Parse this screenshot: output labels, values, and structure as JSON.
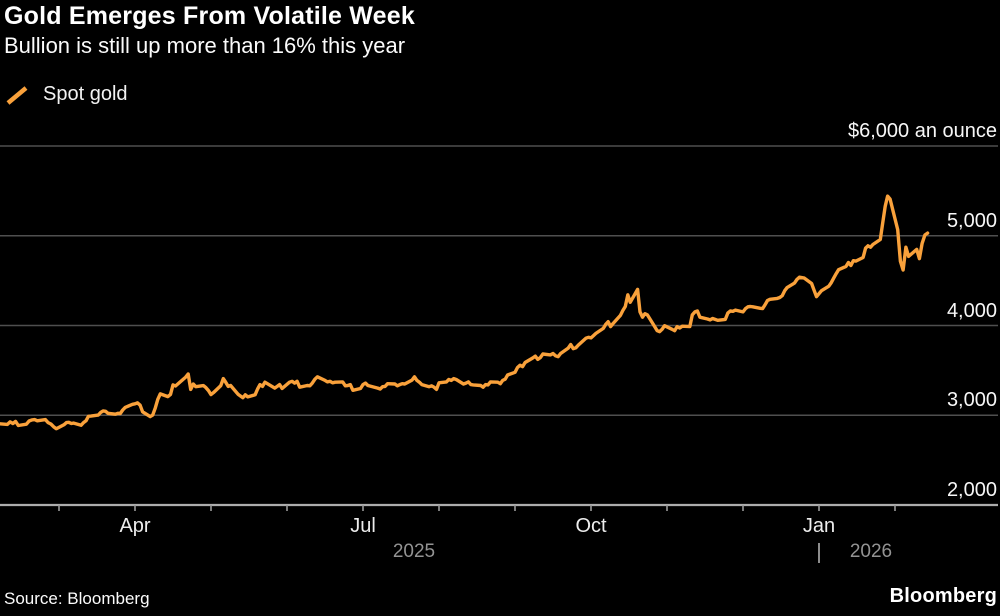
{
  "header": {
    "title": "Gold Emerges From Volatile Week",
    "subtitle": "Bullion is still up more than 16% this year"
  },
  "legend": {
    "marker": "orange-slash",
    "label": "Spot gold"
  },
  "footer": {
    "source": "Source: Bloomberg",
    "logo": "Bloomberg"
  },
  "colors": {
    "background": "#000000",
    "line": "#F9A13B",
    "grid": "#4F4F4F",
    "axis": "#ADADAD",
    "tick": "#9A9A9A",
    "text_primary": "#FFFFFF",
    "text_secondary": "#939393"
  },
  "chart_data": {
    "type": "line",
    "title": "Gold Emerges From Volatile Week",
    "subtitle": "Bullion is still up more than 16% this year",
    "grid": true,
    "legend_position": "top-left",
    "ylim": [
      2000,
      6000
    ],
    "y_axis": {
      "ticks": [
        6000,
        5000,
        4000,
        3000,
        2000
      ],
      "tick_labels": [
        "$6,000 an ounce",
        "5,000",
        "4,000",
        "3,000",
        "2,000"
      ],
      "side": "right"
    },
    "x_axis": {
      "ticks": [
        {
          "month": "2025-03",
          "label": ""
        },
        {
          "month": "2025-04",
          "label": "Apr"
        },
        {
          "month": "2025-05",
          "label": ""
        },
        {
          "month": "2025-06",
          "label": ""
        },
        {
          "month": "2025-07",
          "label": "Jul"
        },
        {
          "month": "2025-08",
          "label": ""
        },
        {
          "month": "2025-09",
          "label": ""
        },
        {
          "month": "2025-10",
          "label": "Oct"
        },
        {
          "month": "2025-11",
          "label": ""
        },
        {
          "month": "2025-12",
          "label": ""
        },
        {
          "month": "2026-01",
          "label": "Jan"
        },
        {
          "month": "2026-02",
          "label": ""
        }
      ],
      "year_labels": [
        "2025",
        "2026"
      ],
      "year_separator": "|"
    },
    "series": [
      {
        "name": "Spot gold",
        "color": "#F9A13B",
        "unit": "USD per ounce",
        "points": [
          [
            "2025-02-07",
            2905
          ],
          [
            "2025-02-10",
            2898
          ],
          [
            "2025-02-11",
            2926
          ],
          [
            "2025-02-12",
            2908
          ],
          [
            "2025-02-13",
            2932
          ],
          [
            "2025-02-14",
            2886
          ],
          [
            "2025-02-17",
            2900
          ],
          [
            "2025-02-18",
            2936
          ],
          [
            "2025-02-19",
            2948
          ],
          [
            "2025-02-20",
            2952
          ],
          [
            "2025-02-21",
            2938
          ],
          [
            "2025-02-24",
            2952
          ],
          [
            "2025-02-25",
            2918
          ],
          [
            "2025-02-26",
            2902
          ],
          [
            "2025-02-27",
            2872
          ],
          [
            "2025-02-28",
            2850
          ],
          [
            "2025-03-03",
            2894
          ],
          [
            "2025-03-04",
            2918
          ],
          [
            "2025-03-05",
            2922
          ],
          [
            "2025-03-06",
            2908
          ],
          [
            "2025-03-07",
            2912
          ],
          [
            "2025-03-10",
            2888
          ],
          [
            "2025-03-11",
            2918
          ],
          [
            "2025-03-12",
            2938
          ],
          [
            "2025-03-13",
            2988
          ],
          [
            "2025-03-14",
            2990
          ],
          [
            "2025-03-17",
            3002
          ],
          [
            "2025-03-18",
            3032
          ],
          [
            "2025-03-19",
            3048
          ],
          [
            "2025-03-20",
            3044
          ],
          [
            "2025-03-21",
            3022
          ],
          [
            "2025-03-24",
            3012
          ],
          [
            "2025-03-25",
            3022
          ],
          [
            "2025-03-26",
            3020
          ],
          [
            "2025-03-27",
            3058
          ],
          [
            "2025-03-28",
            3088
          ],
          [
            "2025-03-31",
            3122
          ],
          [
            "2025-04-01",
            3128
          ],
          [
            "2025-04-02",
            3138
          ],
          [
            "2025-04-03",
            3112
          ],
          [
            "2025-04-04",
            3038
          ],
          [
            "2025-04-07",
            2985
          ],
          [
            "2025-04-08",
            3002
          ],
          [
            "2025-04-09",
            3082
          ],
          [
            "2025-04-10",
            3178
          ],
          [
            "2025-04-11",
            3238
          ],
          [
            "2025-04-14",
            3208
          ],
          [
            "2025-04-15",
            3232
          ],
          [
            "2025-04-16",
            3338
          ],
          [
            "2025-04-17",
            3326
          ],
          [
            "2025-04-21",
            3425
          ],
          [
            "2025-04-22",
            3460
          ],
          [
            "2025-04-23",
            3288
          ],
          [
            "2025-04-24",
            3348
          ],
          [
            "2025-04-25",
            3318
          ],
          [
            "2025-04-28",
            3330
          ],
          [
            "2025-04-29",
            3308
          ],
          [
            "2025-04-30",
            3275
          ],
          [
            "2025-05-01",
            3230
          ],
          [
            "2025-05-02",
            3252
          ],
          [
            "2025-05-05",
            3330
          ],
          [
            "2025-05-06",
            3408
          ],
          [
            "2025-05-07",
            3368
          ],
          [
            "2025-05-08",
            3322
          ],
          [
            "2025-05-09",
            3332
          ],
          [
            "2025-05-12",
            3235
          ],
          [
            "2025-05-14",
            3195
          ],
          [
            "2025-05-15",
            3228
          ],
          [
            "2025-05-16",
            3204
          ],
          [
            "2025-05-19",
            3228
          ],
          [
            "2025-05-20",
            3292
          ],
          [
            "2025-05-21",
            3342
          ],
          [
            "2025-05-22",
            3322
          ],
          [
            "2025-05-23",
            3368
          ],
          [
            "2025-05-27",
            3302
          ],
          [
            "2025-05-28",
            3322
          ],
          [
            "2025-05-29",
            3342
          ],
          [
            "2025-05-30",
            3298
          ],
          [
            "2025-06-02",
            3368
          ],
          [
            "2025-06-03",
            3378
          ],
          [
            "2025-06-04",
            3358
          ],
          [
            "2025-06-05",
            3378
          ],
          [
            "2025-06-06",
            3312
          ],
          [
            "2025-06-09",
            3332
          ],
          [
            "2025-06-10",
            3328
          ],
          [
            "2025-06-11",
            3358
          ],
          [
            "2025-06-12",
            3402
          ],
          [
            "2025-06-13",
            3428
          ],
          [
            "2025-06-16",
            3388
          ],
          [
            "2025-06-17",
            3372
          ],
          [
            "2025-06-18",
            3378
          ],
          [
            "2025-06-19",
            3362
          ],
          [
            "2025-06-20",
            3368
          ],
          [
            "2025-06-23",
            3372
          ],
          [
            "2025-06-24",
            3328
          ],
          [
            "2025-06-25",
            3332
          ],
          [
            "2025-06-26",
            3342
          ],
          [
            "2025-06-27",
            3278
          ],
          [
            "2025-06-30",
            3298
          ],
          [
            "2025-07-01",
            3342
          ],
          [
            "2025-07-02",
            3358
          ],
          [
            "2025-07-03",
            3332
          ],
          [
            "2025-07-07",
            3302
          ],
          [
            "2025-07-08",
            3292
          ],
          [
            "2025-07-09",
            3318
          ],
          [
            "2025-07-10",
            3322
          ],
          [
            "2025-07-11",
            3352
          ],
          [
            "2025-07-14",
            3348
          ],
          [
            "2025-07-15",
            3328
          ],
          [
            "2025-07-16",
            3342
          ],
          [
            "2025-07-17",
            3352
          ],
          [
            "2025-07-18",
            3348
          ],
          [
            "2025-07-21",
            3392
          ],
          [
            "2025-07-22",
            3428
          ],
          [
            "2025-07-23",
            3388
          ],
          [
            "2025-07-24",
            3368
          ],
          [
            "2025-07-25",
            3342
          ],
          [
            "2025-07-28",
            3318
          ],
          [
            "2025-07-29",
            3328
          ],
          [
            "2025-07-30",
            3312
          ],
          [
            "2025-07-31",
            3288
          ],
          [
            "2025-08-01",
            3362
          ],
          [
            "2025-08-04",
            3372
          ],
          [
            "2025-08-05",
            3398
          ],
          [
            "2025-08-06",
            3388
          ],
          [
            "2025-08-07",
            3408
          ],
          [
            "2025-08-08",
            3398
          ],
          [
            "2025-08-11",
            3348
          ],
          [
            "2025-08-12",
            3358
          ],
          [
            "2025-08-13",
            3372
          ],
          [
            "2025-08-14",
            3342
          ],
          [
            "2025-08-15",
            3338
          ],
          [
            "2025-08-18",
            3332
          ],
          [
            "2025-08-19",
            3312
          ],
          [
            "2025-08-20",
            3342
          ],
          [
            "2025-08-21",
            3338
          ],
          [
            "2025-08-22",
            3372
          ],
          [
            "2025-08-25",
            3368
          ],
          [
            "2025-08-26",
            3352
          ],
          [
            "2025-08-27",
            3388
          ],
          [
            "2025-08-28",
            3402
          ],
          [
            "2025-08-29",
            3448
          ],
          [
            "2025-09-01",
            3478
          ],
          [
            "2025-09-02",
            3532
          ],
          [
            "2025-09-03",
            3558
          ],
          [
            "2025-09-04",
            3542
          ],
          [
            "2025-09-05",
            3588
          ],
          [
            "2025-09-08",
            3638
          ],
          [
            "2025-09-09",
            3658
          ],
          [
            "2025-09-10",
            3622
          ],
          [
            "2025-09-11",
            3642
          ],
          [
            "2025-09-12",
            3682
          ],
          [
            "2025-09-15",
            3672
          ],
          [
            "2025-09-16",
            3688
          ],
          [
            "2025-09-17",
            3662
          ],
          [
            "2025-09-18",
            3652
          ],
          [
            "2025-09-19",
            3688
          ],
          [
            "2025-09-22",
            3748
          ],
          [
            "2025-09-23",
            3788
          ],
          [
            "2025-09-24",
            3742
          ],
          [
            "2025-09-25",
            3752
          ],
          [
            "2025-09-26",
            3782
          ],
          [
            "2025-09-29",
            3858
          ],
          [
            "2025-09-30",
            3868
          ],
          [
            "2025-10-01",
            3862
          ],
          [
            "2025-10-02",
            3888
          ],
          [
            "2025-10-03",
            3912
          ],
          [
            "2025-10-06",
            3968
          ],
          [
            "2025-10-07",
            4012
          ],
          [
            "2025-10-08",
            4042
          ],
          [
            "2025-10-09",
            3988
          ],
          [
            "2025-10-10",
            4022
          ],
          [
            "2025-10-13",
            4112
          ],
          [
            "2025-10-14",
            4168
          ],
          [
            "2025-10-15",
            4212
          ],
          [
            "2025-10-16",
            4342
          ],
          [
            "2025-10-17",
            4258
          ],
          [
            "2025-10-20",
            4402
          ],
          [
            "2025-10-21",
            4152
          ],
          [
            "2025-10-22",
            4092
          ],
          [
            "2025-10-23",
            4132
          ],
          [
            "2025-10-24",
            4118
          ],
          [
            "2025-10-27",
            3988
          ],
          [
            "2025-10-28",
            3942
          ],
          [
            "2025-10-29",
            3932
          ],
          [
            "2025-10-30",
            3958
          ],
          [
            "2025-10-31",
            3998
          ],
          [
            "2025-11-03",
            3958
          ],
          [
            "2025-11-04",
            3942
          ],
          [
            "2025-11-05",
            3988
          ],
          [
            "2025-11-06",
            3972
          ],
          [
            "2025-11-07",
            3992
          ],
          [
            "2025-11-10",
            3988
          ],
          [
            "2025-11-11",
            4118
          ],
          [
            "2025-11-12",
            4152
          ],
          [
            "2025-11-13",
            4162
          ],
          [
            "2025-11-14",
            4092
          ],
          [
            "2025-11-17",
            4072
          ],
          [
            "2025-11-18",
            4062
          ],
          [
            "2025-11-19",
            4078
          ],
          [
            "2025-11-20",
            4068
          ],
          [
            "2025-11-21",
            4058
          ],
          [
            "2025-11-24",
            4068
          ],
          [
            "2025-11-25",
            4138
          ],
          [
            "2025-11-26",
            4162
          ],
          [
            "2025-11-27",
            4158
          ],
          [
            "2025-11-28",
            4172
          ],
          [
            "2025-12-01",
            4152
          ],
          [
            "2025-12-02",
            4188
          ],
          [
            "2025-12-03",
            4208
          ],
          [
            "2025-12-04",
            4212
          ],
          [
            "2025-12-05",
            4208
          ],
          [
            "2025-12-08",
            4192
          ],
          [
            "2025-12-09",
            4188
          ],
          [
            "2025-12-10",
            4232
          ],
          [
            "2025-12-11",
            4278
          ],
          [
            "2025-12-12",
            4292
          ],
          [
            "2025-12-15",
            4302
          ],
          [
            "2025-12-16",
            4312
          ],
          [
            "2025-12-17",
            4332
          ],
          [
            "2025-12-18",
            4388
          ],
          [
            "2025-12-19",
            4422
          ],
          [
            "2025-12-22",
            4472
          ],
          [
            "2025-12-23",
            4512
          ],
          [
            "2025-12-24",
            4538
          ],
          [
            "2025-12-26",
            4528
          ],
          [
            "2025-12-29",
            4468
          ],
          [
            "2025-12-30",
            4392
          ],
          [
            "2025-12-31",
            4322
          ],
          [
            "2026-01-02",
            4388
          ],
          [
            "2026-01-05",
            4438
          ],
          [
            "2026-01-06",
            4478
          ],
          [
            "2026-01-07",
            4528
          ],
          [
            "2026-01-08",
            4578
          ],
          [
            "2026-01-09",
            4622
          ],
          [
            "2026-01-12",
            4658
          ],
          [
            "2026-01-13",
            4702
          ],
          [
            "2026-01-14",
            4668
          ],
          [
            "2026-01-15",
            4722
          ],
          [
            "2026-01-16",
            4718
          ],
          [
            "2026-01-19",
            4758
          ],
          [
            "2026-01-20",
            4862
          ],
          [
            "2026-01-21",
            4888
          ],
          [
            "2026-01-22",
            4872
          ],
          [
            "2026-01-23",
            4902
          ],
          [
            "2026-01-26",
            4958
          ],
          [
            "2026-01-27",
            5142
          ],
          [
            "2026-01-28",
            5328
          ],
          [
            "2026-01-29",
            5442
          ],
          [
            "2026-01-30",
            5408
          ],
          [
            "2026-02-02",
            5068
          ],
          [
            "2026-02-03",
            4715
          ],
          [
            "2026-02-04",
            4618
          ],
          [
            "2026-02-05",
            4872
          ],
          [
            "2026-02-06",
            4770
          ],
          [
            "2026-02-09",
            4848
          ],
          [
            "2026-02-10",
            4745
          ],
          [
            "2026-02-11",
            4915
          ],
          [
            "2026-02-12",
            5008
          ],
          [
            "2026-02-13",
            5030
          ]
        ]
      }
    ]
  }
}
